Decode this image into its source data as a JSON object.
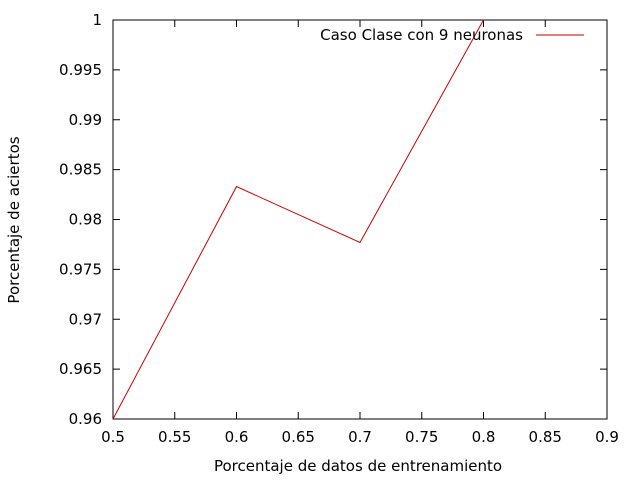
{
  "chart_data": {
    "type": "line",
    "title": "",
    "xlabel": "Porcentaje de datos de entrenamiento",
    "ylabel": "Porcentaje de aciertos",
    "xlim": [
      0.5,
      0.9
    ],
    "ylim": [
      0.96,
      1.0
    ],
    "x_ticks": [
      "0.5",
      "0.55",
      "0.6",
      "0.65",
      "0.7",
      "0.75",
      "0.8",
      "0.85",
      "0.9"
    ],
    "y_ticks": [
      "0.96",
      "0.965",
      "0.97",
      "0.975",
      "0.98",
      "0.985",
      "0.99",
      "0.995",
      "1"
    ],
    "grid": false,
    "legend_position": "top-right",
    "series": [
      {
        "name": "Caso Clase con 9 neuronas",
        "color": "#cc0000",
        "x": [
          0.5,
          0.6,
          0.7,
          0.8
        ],
        "y": [
          0.96,
          0.9833,
          0.9777,
          1.0
        ]
      }
    ]
  }
}
